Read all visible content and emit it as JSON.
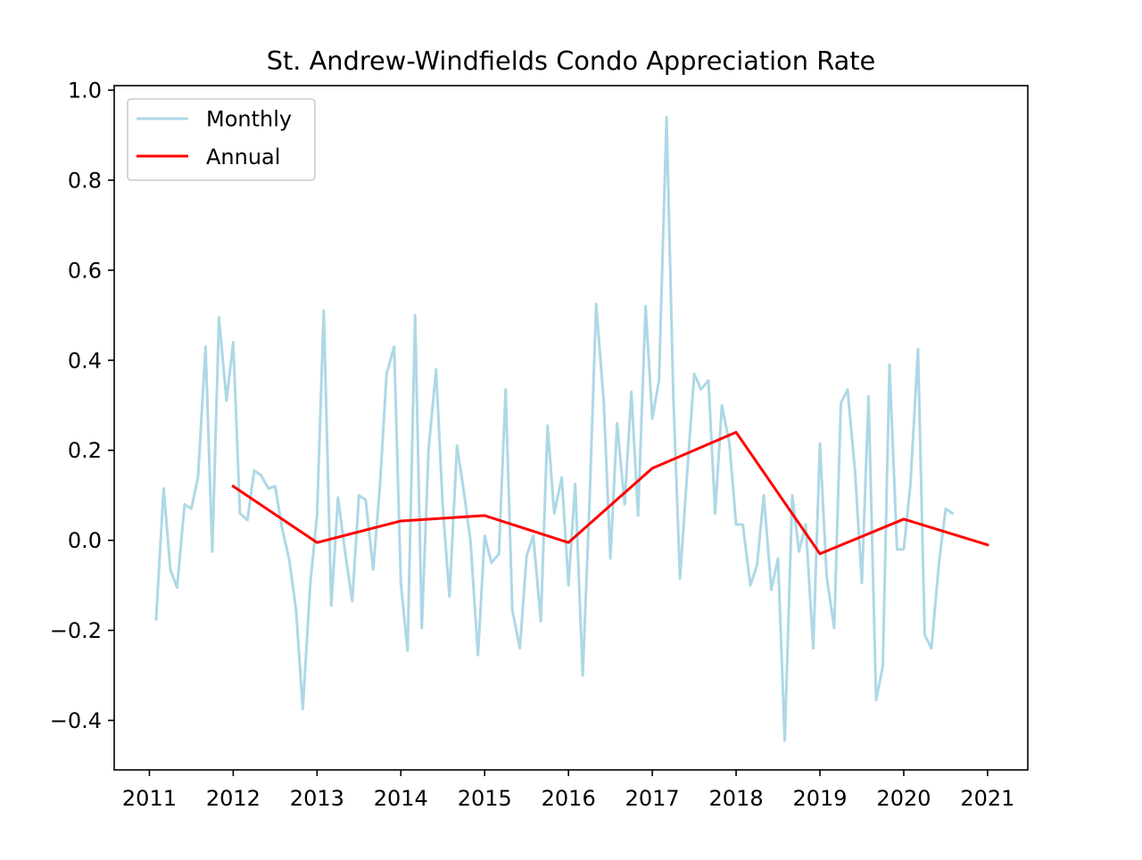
{
  "chart_data": {
    "type": "line",
    "title": "St. Andrew-Windfields Condo Appreciation Rate",
    "xlabel": "",
    "ylabel": "",
    "xlim": [
      2010.58,
      2021.48
    ],
    "ylim": [
      -0.51,
      1.01
    ],
    "xticks": [
      2011,
      2012,
      2013,
      2014,
      2015,
      2016,
      2017,
      2018,
      2019,
      2020,
      2021
    ],
    "yticks": [
      -0.4,
      -0.2,
      0.0,
      0.2,
      0.4,
      0.6,
      0.8,
      1.0
    ],
    "ytick_labels": [
      "−0.4",
      "−0.2",
      "0.0",
      "0.2",
      "0.4",
      "0.6",
      "0.8",
      "1.0"
    ],
    "legend": {
      "position": "upper-left"
    },
    "grid": false,
    "series": [
      {
        "name": "Monthly",
        "color": "#add8e6",
        "x": [
          2011.08,
          2011.17,
          2011.25,
          2011.33,
          2011.42,
          2011.5,
          2011.58,
          2011.67,
          2011.75,
          2011.83,
          2011.92,
          2012.0,
          2012.08,
          2012.17,
          2012.25,
          2012.33,
          2012.42,
          2012.5,
          2012.58,
          2012.67,
          2012.75,
          2012.83,
          2012.92,
          2013.0,
          2013.08,
          2013.17,
          2013.25,
          2013.33,
          2013.42,
          2013.5,
          2013.58,
          2013.67,
          2013.75,
          2013.83,
          2013.92,
          2014.0,
          2014.08,
          2014.17,
          2014.25,
          2014.33,
          2014.42,
          2014.5,
          2014.58,
          2014.67,
          2014.75,
          2014.83,
          2014.92,
          2015.0,
          2015.08,
          2015.17,
          2015.25,
          2015.33,
          2015.42,
          2015.5,
          2015.58,
          2015.67,
          2015.75,
          2015.83,
          2015.92,
          2016.0,
          2016.08,
          2016.17,
          2016.25,
          2016.33,
          2016.42,
          2016.5,
          2016.58,
          2016.67,
          2016.75,
          2016.83,
          2016.92,
          2017.0,
          2017.08,
          2017.17,
          2017.25,
          2017.33,
          2017.42,
          2017.5,
          2017.58,
          2017.67,
          2017.75,
          2017.83,
          2017.92,
          2018.0,
          2018.08,
          2018.17,
          2018.25,
          2018.33,
          2018.42,
          2018.5,
          2018.58,
          2018.67,
          2018.75,
          2018.83,
          2018.92,
          2019.0,
          2019.08,
          2019.17,
          2019.25,
          2019.33,
          2019.42,
          2019.5,
          2019.58,
          2019.67,
          2019.75,
          2019.83,
          2019.92,
          2020.0,
          2020.08,
          2020.17,
          2020.25,
          2020.33,
          2020.42,
          2020.5,
          2020.58
        ],
        "y": [
          -0.175,
          0.115,
          -0.065,
          -0.105,
          0.08,
          0.07,
          0.14,
          0.43,
          -0.025,
          0.495,
          0.31,
          0.44,
          0.06,
          0.045,
          0.155,
          0.145,
          0.115,
          0.12,
          0.03,
          -0.045,
          -0.155,
          -0.375,
          -0.095,
          0.055,
          0.51,
          -0.145,
          0.095,
          -0.02,
          -0.135,
          0.1,
          0.09,
          -0.065,
          0.12,
          0.37,
          0.43,
          -0.095,
          -0.245,
          0.5,
          -0.195,
          0.2,
          0.38,
          0.075,
          -0.125,
          0.21,
          0.11,
          0.0,
          -0.255,
          0.01,
          -0.05,
          -0.03,
          0.335,
          -0.155,
          -0.24,
          -0.035,
          0.01,
          -0.18,
          0.255,
          0.06,
          0.14,
          -0.1,
          0.125,
          -0.3,
          0.08,
          0.525,
          0.31,
          -0.04,
          0.26,
          0.08,
          0.33,
          0.055,
          0.52,
          0.27,
          0.355,
          0.94,
          0.325,
          -0.085,
          0.16,
          0.37,
          0.335,
          0.355,
          0.06,
          0.3,
          0.215,
          0.035,
          0.035,
          -0.1,
          -0.055,
          0.1,
          -0.11,
          -0.04,
          -0.445,
          0.1,
          -0.025,
          0.035,
          -0.24,
          0.215,
          -0.08,
          -0.195,
          0.305,
          0.335,
          0.15,
          -0.095,
          0.32,
          -0.355,
          -0.28,
          0.39,
          -0.02,
          -0.02,
          0.125,
          0.425,
          -0.21,
          -0.24,
          -0.05,
          0.07,
          0.06
        ]
      },
      {
        "name": "Annual",
        "color": "#ff0000",
        "x": [
          2012,
          2013,
          2014,
          2015,
          2016,
          2017,
          2018,
          2019,
          2020,
          2021
        ],
        "y": [
          0.12,
          -0.005,
          0.043,
          0.055,
          -0.005,
          0.16,
          0.24,
          -0.03,
          0.047,
          -0.01
        ]
      }
    ]
  }
}
